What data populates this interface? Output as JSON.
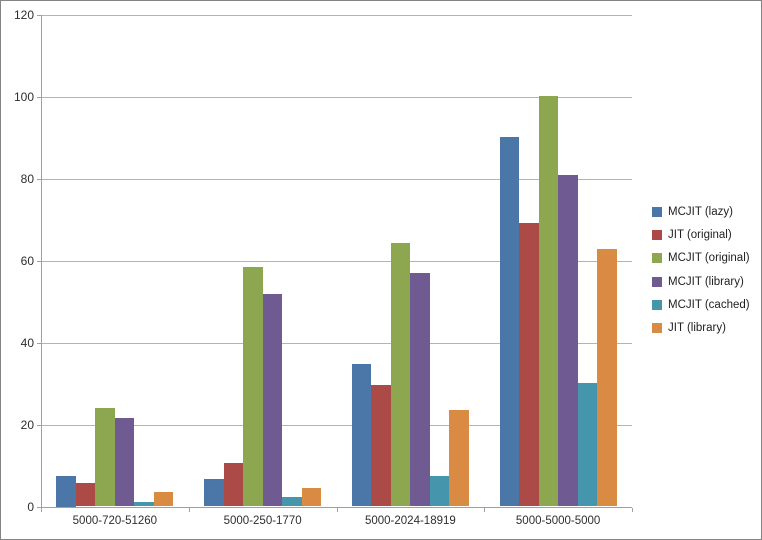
{
  "chart_data": {
    "type": "bar",
    "title": "",
    "xlabel": "",
    "ylabel": "",
    "categories": [
      "5000-720-51260",
      "5000-250-1770",
      "5000-2024-18919",
      "5000-5000-5000"
    ],
    "series": [
      {
        "name": "MCJIT (lazy)",
        "color": "#4A76A8",
        "values": [
          7.5,
          6.8,
          34.8,
          90.3
        ]
      },
      {
        "name": "JIT (original)",
        "color": "#AB4A47",
        "values": [
          5.8,
          10.7,
          29.6,
          69.3
        ]
      },
      {
        "name": "MCJIT (original)",
        "color": "#8CA750",
        "values": [
          24.0,
          58.5,
          64.3,
          100.3
        ]
      },
      {
        "name": "MCJIT (library)",
        "color": "#6F5A92",
        "values": [
          21.6,
          52.0,
          57.0,
          81.0
        ]
      },
      {
        "name": "MCJIT (cached)",
        "color": "#4596AC",
        "values": [
          1.1,
          2.3,
          7.4,
          30.2
        ]
      },
      {
        "name": "JIT (library)",
        "color": "#D98B43",
        "values": [
          3.6,
          4.5,
          23.5,
          62.9
        ]
      }
    ],
    "ylim": [
      0,
      120
    ],
    "yticks": [
      0,
      20,
      40,
      60,
      80,
      100,
      120
    ],
    "grid": true,
    "legend_position": "right"
  },
  "style_colors": {
    "frame_border": "#848484",
    "axis_line": "#A0A0A0",
    "gridline": "#B4B4B4",
    "tick_label": "#2E2E2E",
    "background": "#FFFFFF"
  }
}
